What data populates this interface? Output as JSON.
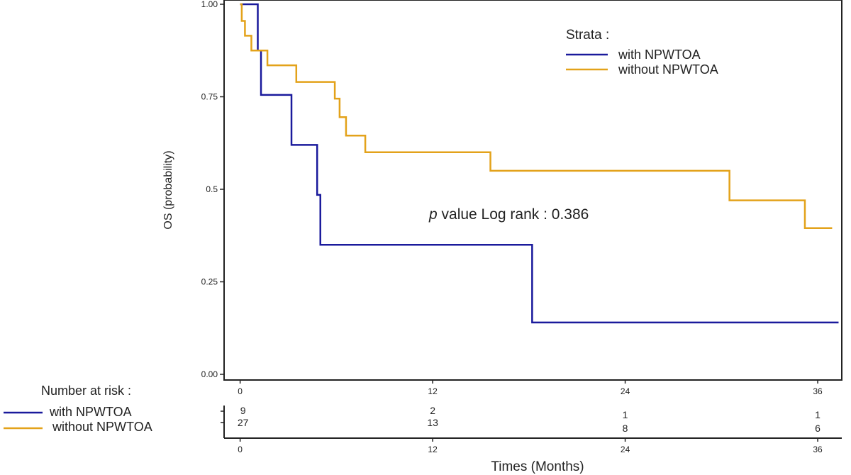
{
  "chart_data": {
    "type": "line",
    "subtype": "kaplan-meier",
    "ylabel": "OS (probability)",
    "xlabel": "Times (Months)",
    "xlim": [
      -1,
      37.5
    ],
    "ylim": [
      0,
      1
    ],
    "y_ticks": [
      "0.00",
      "0.25",
      "0.5",
      "0.75",
      "1.00"
    ],
    "y_tick_values": [
      0,
      0.25,
      0.5,
      0.75,
      1.0
    ],
    "x_ticks": [
      "0",
      "12",
      "24",
      "36"
    ],
    "x_tick_values": [
      0,
      12,
      24,
      36
    ],
    "legend": {
      "title": "Strata :",
      "position": "top-right",
      "entries": [
        "with NPWTOA",
        "without NPWTOA"
      ]
    },
    "annotation": {
      "italic": "p",
      "text": " value Log rank : 0.386"
    },
    "series": [
      {
        "name": "with NPWTOA",
        "color": "#1a1a9c",
        "steps": [
          [
            0,
            1.0
          ],
          [
            1.1,
            0.875
          ],
          [
            1.3,
            0.755
          ],
          [
            3.2,
            0.62
          ],
          [
            4.8,
            0.485
          ],
          [
            5.0,
            0.35
          ],
          [
            18.2,
            0.14
          ],
          [
            37.3,
            0.14
          ]
        ]
      },
      {
        "name": "without NPWTOA",
        "color": "#e3a21a",
        "steps": [
          [
            0,
            1.0
          ],
          [
            0.1,
            0.955
          ],
          [
            0.3,
            0.915
          ],
          [
            0.7,
            0.875
          ],
          [
            1.7,
            0.835
          ],
          [
            3.5,
            0.79
          ],
          [
            5.9,
            0.745
          ],
          [
            6.2,
            0.695
          ],
          [
            6.6,
            0.645
          ],
          [
            7.8,
            0.6
          ],
          [
            15.6,
            0.55
          ],
          [
            30.5,
            0.47
          ],
          [
            35.2,
            0.395
          ],
          [
            36.9,
            0.395
          ]
        ]
      }
    ],
    "risk_table": {
      "title": "Number at risk :",
      "rows": [
        {
          "name": "with NPWTOA",
          "color": "#1a1a9c",
          "values": [
            "9",
            "2",
            "1",
            "1"
          ]
        },
        {
          "name": "without NPWTOA",
          "color": "#e3a21a",
          "values": [
            "27",
            "13",
            "8",
            "6"
          ]
        }
      ]
    }
  }
}
